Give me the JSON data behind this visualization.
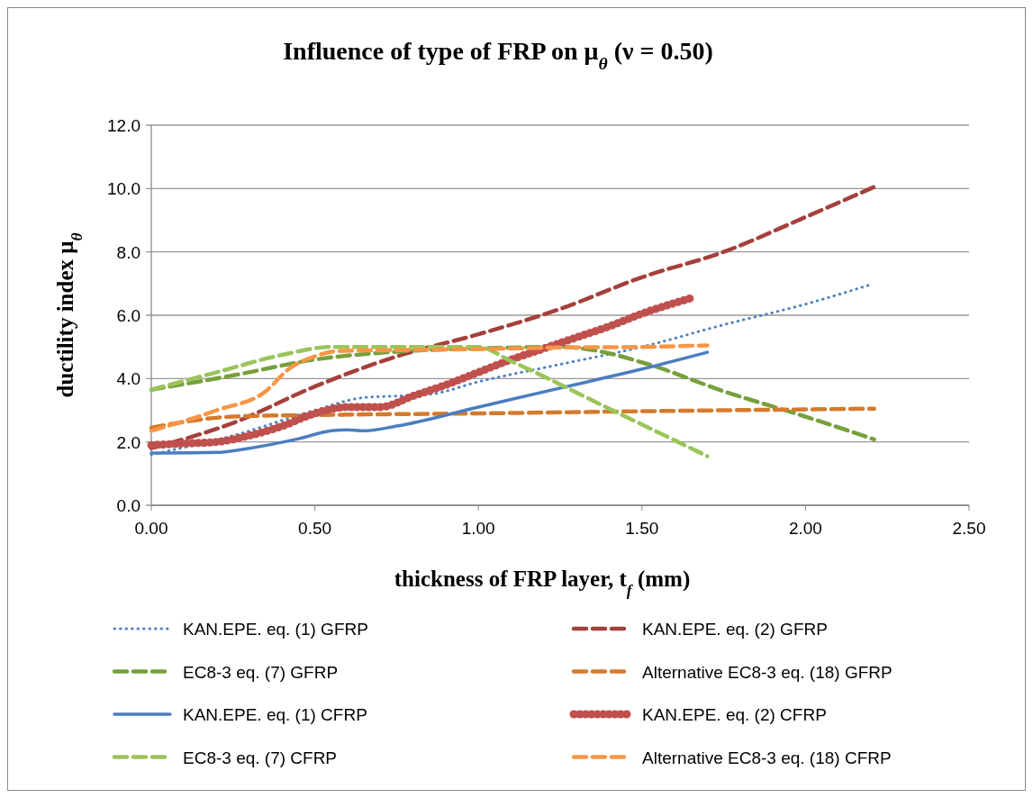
{
  "chart_data": {
    "type": "line",
    "title": "Influence of type of FRP on μ$_{θ}$ (ν = 0.50)",
    "xlabel": "thickness of FRP layer, t$_{f}$ (mm)",
    "ylabel": "ductility index μ$_{θ}$",
    "xlim": [
      0,
      2.5
    ],
    "xticks": [
      {
        "value": 0,
        "label": "0.00"
      },
      {
        "value": 0.5,
        "label": "0.50"
      },
      {
        "value": 1,
        "label": "1.00"
      },
      {
        "value": 1.5,
        "label": "1.50"
      },
      {
        "value": 2,
        "label": "2.00"
      },
      {
        "value": 2.5,
        "label": "2.50"
      }
    ],
    "ylim": [
      0,
      12
    ],
    "yticks": [
      {
        "value": 0,
        "label": "0.0"
      },
      {
        "value": 2,
        "label": "2.0"
      },
      {
        "value": 4,
        "label": "4.0"
      },
      {
        "value": 6,
        "label": "6.0"
      },
      {
        "value": 8,
        "label": "8.0"
      },
      {
        "value": 10,
        "label": "10.0"
      },
      {
        "value": 12,
        "label": "12.0"
      }
    ],
    "grid": "y",
    "legend": "bottom",
    "series": [
      {
        "name": "KAN.EPE. eq. (1) GFRP",
        "color": "#4f81bd",
        "line_style": "dotted",
        "x": [
          0,
          0.25,
          0.5,
          0.65,
          0.75,
          0.85,
          1.0,
          1.25,
          1.5,
          1.75,
          2.0,
          2.2
        ],
        "values": [
          1.6,
          2.2,
          3.0,
          3.4,
          3.45,
          3.5,
          3.9,
          4.45,
          5.0,
          5.7,
          6.35,
          6.97
        ]
      },
      {
        "name": "KAN.EPE. eq. (2) GFRP",
        "color": "#a5403d",
        "line_style": "dashed",
        "x": [
          0,
          0.25,
          0.5,
          0.75,
          1.0,
          1.25,
          1.5,
          1.75,
          2.0,
          2.21
        ],
        "values": [
          1.8,
          2.6,
          3.75,
          4.7,
          5.4,
          6.2,
          7.2,
          8.0,
          9.1,
          10.05
        ]
      },
      {
        "name": "EC8-3 eq. (7) GFRP",
        "color": "#77a03c",
        "line_style": "dashed",
        "x": [
          0,
          0.25,
          0.5,
          0.75,
          1.0,
          1.25,
          1.35,
          1.52,
          1.75,
          2.0,
          2.21
        ],
        "values": [
          3.65,
          4.1,
          4.6,
          4.85,
          4.95,
          5.0,
          4.9,
          4.45,
          3.6,
          2.8,
          2.08
        ]
      },
      {
        "name": "Alternative EC8-3 eq. (18) GFRP",
        "color": "#d47a2c",
        "line_style": "dashed",
        "x": [
          0,
          0.25,
          0.5,
          1.0,
          1.5,
          2.21
        ],
        "values": [
          2.45,
          2.8,
          2.85,
          2.9,
          2.97,
          3.05
        ]
      },
      {
        "name": "KAN.EPE. eq. (1) CFRP",
        "color": "#4a7ec0",
        "line_style": "solid",
        "x": [
          0,
          0.2,
          0.3,
          0.45,
          0.55,
          0.6,
          0.65,
          0.75,
          1.0,
          1.25,
          1.5,
          1.7
        ],
        "values": [
          1.65,
          1.67,
          1.8,
          2.1,
          2.35,
          2.38,
          2.35,
          2.5,
          3.1,
          3.7,
          4.3,
          4.83
        ]
      },
      {
        "name": "KAN.EPE. eq. (2) CFRP",
        "color": "#c0504d",
        "line_style": "dotted",
        "x": [
          0,
          0.1,
          0.2,
          0.3,
          0.4,
          0.5,
          0.6,
          0.7,
          0.8,
          0.9,
          1.0,
          1.1,
          1.2,
          1.3,
          1.4,
          1.5,
          1.65
        ],
        "values": [
          1.9,
          1.95,
          2.0,
          2.2,
          2.5,
          2.9,
          3.1,
          3.1,
          3.45,
          3.8,
          4.2,
          4.6,
          4.95,
          5.3,
          5.65,
          6.05,
          6.54
        ]
      },
      {
        "name": "EC8-3 eq. (7) CFRP",
        "color": "#9bc45a",
        "line_style": "dashed",
        "x": [
          0,
          0.2,
          0.4,
          0.55,
          0.75,
          1.0,
          1.1,
          1.4,
          1.7
        ],
        "values": [
          3.65,
          4.2,
          4.75,
          5.0,
          5.0,
          5.0,
          4.55,
          3.05,
          1.55
        ]
      },
      {
        "name": "Alternative EC8-3 eq. (18) CFRP",
        "color": "#f79646",
        "line_style": "dashed",
        "x": [
          0,
          0.2,
          0.35,
          0.42,
          0.5,
          0.57,
          0.75,
          1.0,
          1.25,
          1.5,
          1.7
        ],
        "values": [
          2.35,
          3.0,
          3.6,
          4.3,
          4.7,
          4.87,
          4.9,
          4.93,
          4.98,
          5.0,
          5.05
        ]
      }
    ]
  }
}
